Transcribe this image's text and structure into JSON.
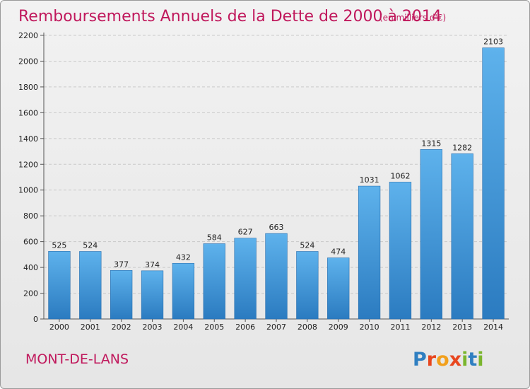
{
  "chart_data": {
    "type": "bar",
    "title": "Remboursements Annuels de la Dette de 2000 à 2014",
    "subtitle": "(en milliers d'€)",
    "xlabel": "",
    "ylabel": "",
    "ylim": [
      0,
      2200
    ],
    "yticks": [
      0,
      200,
      400,
      600,
      800,
      1000,
      1200,
      1400,
      1600,
      1800,
      2000,
      2200
    ],
    "grid": true,
    "categories": [
      "2000",
      "2001",
      "2002",
      "2003",
      "2004",
      "2005",
      "2006",
      "2007",
      "2008",
      "2009",
      "2010",
      "2011",
      "2012",
      "2013",
      "2014"
    ],
    "values": [
      525,
      524,
      377,
      374,
      432,
      584,
      627,
      663,
      524,
      474,
      1031,
      1062,
      1315,
      1282,
      2103
    ],
    "bar_color": "#3a8fd6"
  },
  "footer": {
    "commune": "MONT-DE-LANS",
    "brand_letters": [
      {
        "ch": "P",
        "color": "#2f7fc1"
      },
      {
        "ch": "r",
        "color": "#e8461e"
      },
      {
        "ch": "o",
        "color": "#f2a01c"
      },
      {
        "ch": "x",
        "color": "#e8461e"
      },
      {
        "ch": "i",
        "color": "#7ab52d"
      },
      {
        "ch": "t",
        "color": "#2f7fc1"
      },
      {
        "ch": "i",
        "color": "#7ab52d"
      }
    ]
  }
}
